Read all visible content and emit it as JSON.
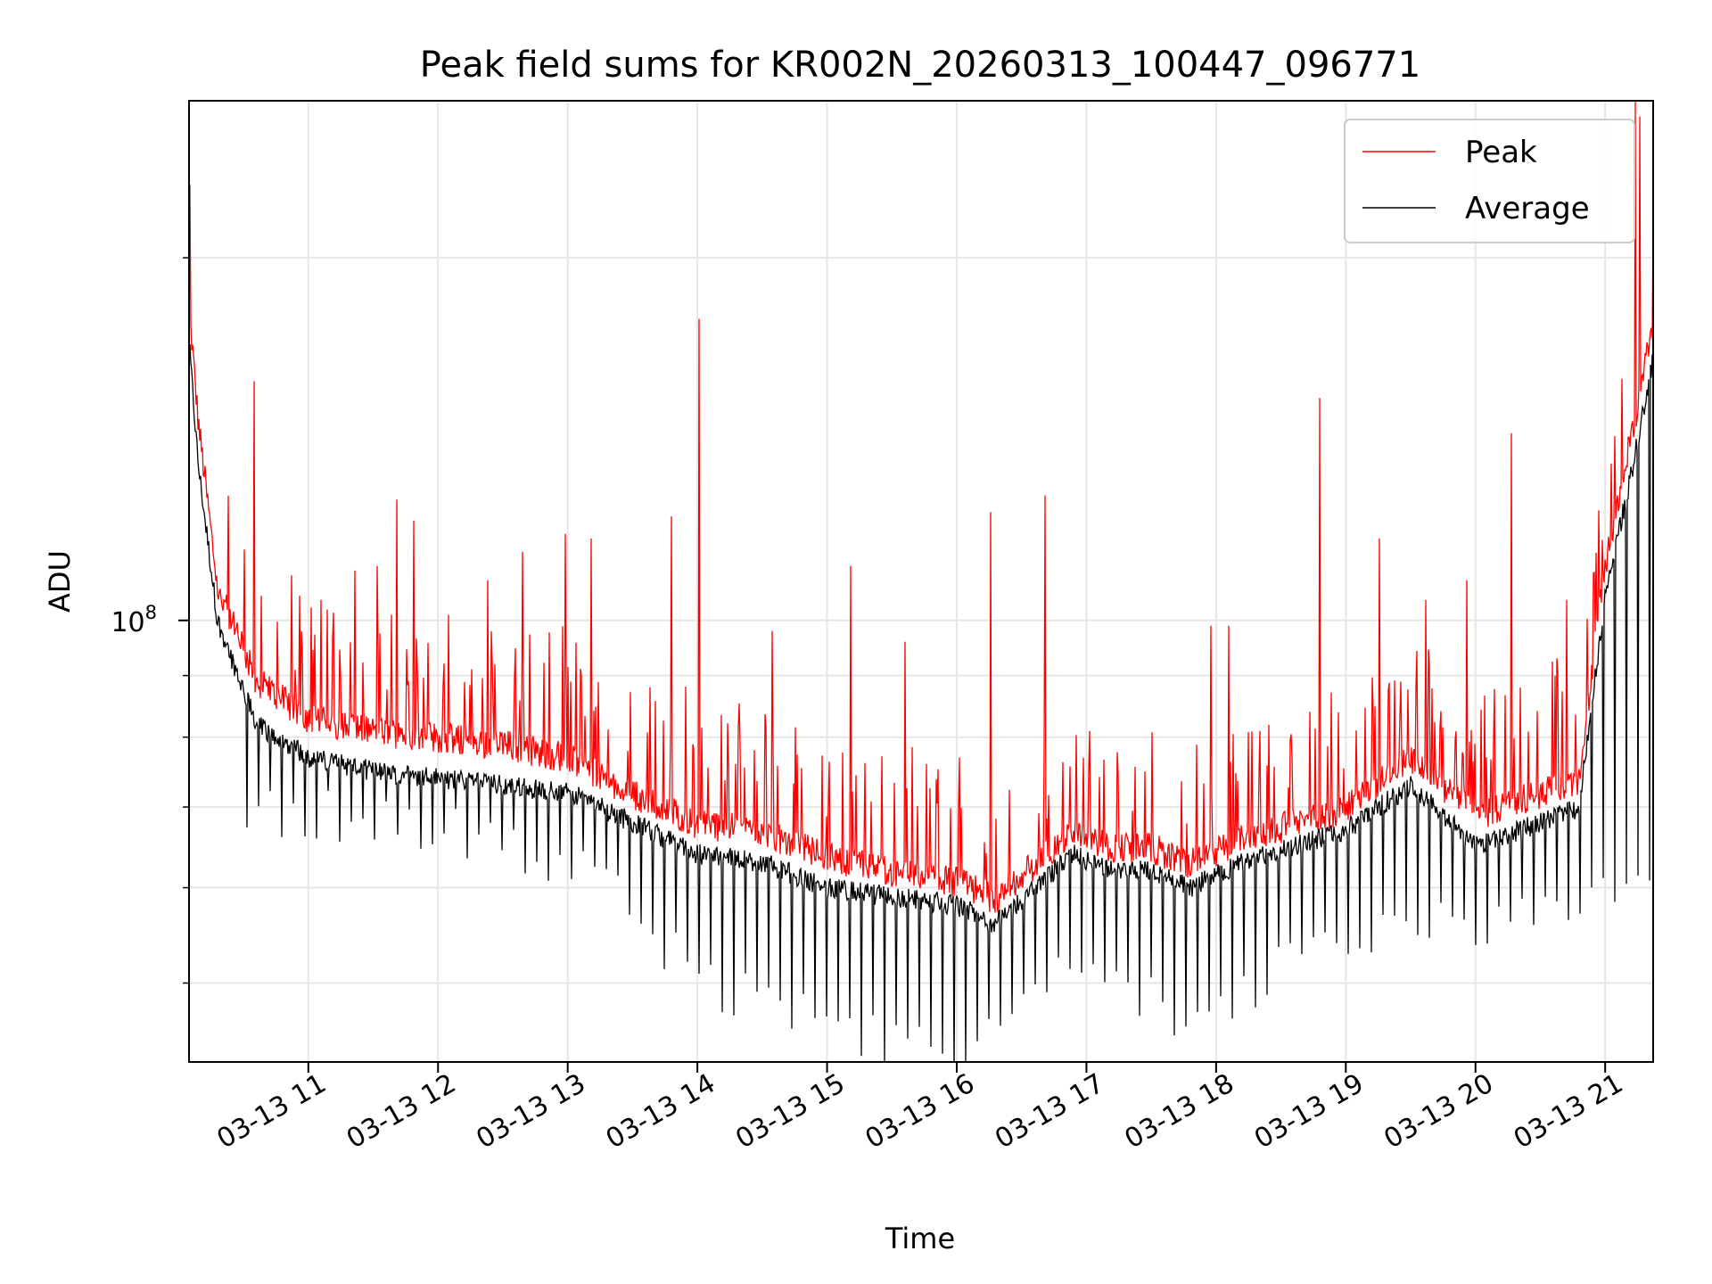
{
  "chart_data": {
    "type": "line",
    "title": "Peak field sums for KR002N_20260313_100447_096771",
    "xlabel": "Time",
    "ylabel": "ADU",
    "yscale": "log",
    "ylim": [
      43000000,
      270000000
    ],
    "xlim_hours": [
      10.08,
      21.37
    ],
    "grid": true,
    "legend": {
      "placement": "top-right"
    },
    "x_ticks": [
      {
        "label": "03-13 11",
        "hour": 11
      },
      {
        "label": "03-13 12",
        "hour": 12
      },
      {
        "label": "03-13 13",
        "hour": 13
      },
      {
        "label": "03-13 14",
        "hour": 14
      },
      {
        "label": "03-13 15",
        "hour": 15
      },
      {
        "label": "03-13 16",
        "hour": 16
      },
      {
        "label": "03-13 17",
        "hour": 17
      },
      {
        "label": "03-13 18",
        "hour": 18
      },
      {
        "label": "03-13 19",
        "hour": 19
      },
      {
        "label": "03-13 20",
        "hour": 20
      },
      {
        "label": "03-13 21",
        "hour": 21
      }
    ],
    "y_major_ticks": [
      {
        "base": "10",
        "exp": "8",
        "value": 100000000
      }
    ],
    "y_minor_ticks": [
      50000000,
      60000000,
      70000000,
      80000000,
      90000000,
      200000000
    ],
    "series": [
      {
        "name": "Peak",
        "color": "#ff0000",
        "baseline": [
          {
            "hour": 10.08,
            "value": 180000000
          },
          {
            "hour": 10.15,
            "value": 145000000
          },
          {
            "hour": 10.3,
            "value": 105000000
          },
          {
            "hour": 10.6,
            "value": 88000000
          },
          {
            "hour": 11.0,
            "value": 82000000
          },
          {
            "hour": 11.5,
            "value": 80000000
          },
          {
            "hour": 12.0,
            "value": 79000000
          },
          {
            "hour": 12.5,
            "value": 78000000
          },
          {
            "hour": 13.0,
            "value": 76000000
          },
          {
            "hour": 13.5,
            "value": 71000000
          },
          {
            "hour": 14.0,
            "value": 67000000
          },
          {
            "hour": 14.5,
            "value": 66000000
          },
          {
            "hour": 15.0,
            "value": 63000000
          },
          {
            "hour": 15.5,
            "value": 61000000
          },
          {
            "hour": 16.0,
            "value": 60000000
          },
          {
            "hour": 16.3,
            "value": 58000000
          },
          {
            "hour": 16.6,
            "value": 62000000
          },
          {
            "hour": 16.9,
            "value": 66000000
          },
          {
            "hour": 17.2,
            "value": 64000000
          },
          {
            "hour": 17.5,
            "value": 64000000
          },
          {
            "hour": 17.8,
            "value": 62000000
          },
          {
            "hour": 18.2,
            "value": 65000000
          },
          {
            "hour": 18.6,
            "value": 67000000
          },
          {
            "hour": 19.0,
            "value": 69000000
          },
          {
            "hour": 19.5,
            "value": 76000000
          },
          {
            "hour": 20.0,
            "value": 68000000
          },
          {
            "hour": 20.5,
            "value": 71000000
          },
          {
            "hour": 20.8,
            "value": 73000000
          },
          {
            "hour": 21.0,
            "value": 110000000
          },
          {
            "hour": 21.2,
            "value": 140000000
          },
          {
            "hour": 21.37,
            "value": 175000000
          }
        ],
        "spikes": [
          {
            "hour": 10.09,
            "value": 230000000
          },
          {
            "hour": 10.58,
            "value": 158000000
          },
          {
            "hour": 10.87,
            "value": 109000000
          },
          {
            "hour": 11.1,
            "value": 104000000
          },
          {
            "hour": 11.36,
            "value": 110000000
          },
          {
            "hour": 11.53,
            "value": 111000000
          },
          {
            "hour": 11.68,
            "value": 126000000
          },
          {
            "hour": 11.81,
            "value": 121000000
          },
          {
            "hour": 12.38,
            "value": 108000000
          },
          {
            "hour": 12.65,
            "value": 114000000
          },
          {
            "hour": 12.98,
            "value": 118000000
          },
          {
            "hour": 13.18,
            "value": 117000000
          },
          {
            "hour": 13.8,
            "value": 122000000
          },
          {
            "hour": 14.01,
            "value": 178000000
          },
          {
            "hour": 14.58,
            "value": 98000000
          },
          {
            "hour": 15.18,
            "value": 111000000
          },
          {
            "hour": 15.6,
            "value": 96000000
          },
          {
            "hour": 16.26,
            "value": 123000000
          },
          {
            "hour": 16.68,
            "value": 127000000
          },
          {
            "hour": 17.96,
            "value": 99000000
          },
          {
            "hour": 18.1,
            "value": 99000000
          },
          {
            "hour": 18.8,
            "value": 153000000
          },
          {
            "hour": 19.26,
            "value": 117000000
          },
          {
            "hour": 19.62,
            "value": 104000000
          },
          {
            "hour": 19.93,
            "value": 108000000
          },
          {
            "hour": 20.28,
            "value": 143000000
          },
          {
            "hour": 20.7,
            "value": 104000000
          },
          {
            "hour": 21.23,
            "value": 270000000
          },
          {
            "hour": 21.27,
            "value": 262000000
          }
        ]
      },
      {
        "name": "Average",
        "color": "#000000",
        "baseline": [
          {
            "hour": 10.08,
            "value": 170000000
          },
          {
            "hour": 10.15,
            "value": 135000000
          },
          {
            "hour": 10.3,
            "value": 100000000
          },
          {
            "hour": 10.6,
            "value": 82000000
          },
          {
            "hour": 11.0,
            "value": 77000000
          },
          {
            "hour": 11.5,
            "value": 75000000
          },
          {
            "hour": 12.0,
            "value": 74000000
          },
          {
            "hour": 12.5,
            "value": 73000000
          },
          {
            "hour": 13.0,
            "value": 72000000
          },
          {
            "hour": 13.5,
            "value": 68000000
          },
          {
            "hour": 14.0,
            "value": 64000000
          },
          {
            "hour": 14.5,
            "value": 63000000
          },
          {
            "hour": 15.0,
            "value": 60000000
          },
          {
            "hour": 15.5,
            "value": 59000000
          },
          {
            "hour": 16.0,
            "value": 58000000
          },
          {
            "hour": 16.3,
            "value": 56000000
          },
          {
            "hour": 16.6,
            "value": 60000000
          },
          {
            "hour": 16.9,
            "value": 64000000
          },
          {
            "hour": 17.2,
            "value": 62000000
          },
          {
            "hour": 17.5,
            "value": 62000000
          },
          {
            "hour": 17.8,
            "value": 60000000
          },
          {
            "hour": 18.2,
            "value": 63000000
          },
          {
            "hour": 18.6,
            "value": 65000000
          },
          {
            "hour": 19.0,
            "value": 67000000
          },
          {
            "hour": 19.5,
            "value": 73000000
          },
          {
            "hour": 20.0,
            "value": 65000000
          },
          {
            "hour": 20.5,
            "value": 68000000
          },
          {
            "hour": 20.8,
            "value": 70000000
          },
          {
            "hour": 21.0,
            "value": 105000000
          },
          {
            "hour": 21.2,
            "value": 132000000
          },
          {
            "hour": 21.37,
            "value": 165000000
          }
        ],
        "dips": [
          {
            "hour": 11.0,
            "value": 70000000
          },
          {
            "hour": 12.0,
            "value": 68000000
          },
          {
            "hour": 13.0,
            "value": 64000000
          },
          {
            "hour": 13.5,
            "value": 58000000
          },
          {
            "hour": 14.0,
            "value": 51000000
          },
          {
            "hour": 14.5,
            "value": 49000000
          },
          {
            "hour": 15.0,
            "value": 46000000
          },
          {
            "hour": 15.5,
            "value": 45000000
          },
          {
            "hour": 16.0,
            "value": 44000000
          },
          {
            "hour": 16.4,
            "value": 46000000
          },
          {
            "hour": 16.9,
            "value": 52000000
          },
          {
            "hour": 17.4,
            "value": 49000000
          },
          {
            "hour": 17.9,
            "value": 47000000
          },
          {
            "hour": 18.4,
            "value": 51000000
          },
          {
            "hour": 19.0,
            "value": 55000000
          },
          {
            "hour": 19.6,
            "value": 58000000
          },
          {
            "hour": 20.0,
            "value": 56000000
          },
          {
            "hour": 20.5,
            "value": 58000000
          },
          {
            "hour": 20.8,
            "value": 60000000
          }
        ]
      }
    ]
  }
}
